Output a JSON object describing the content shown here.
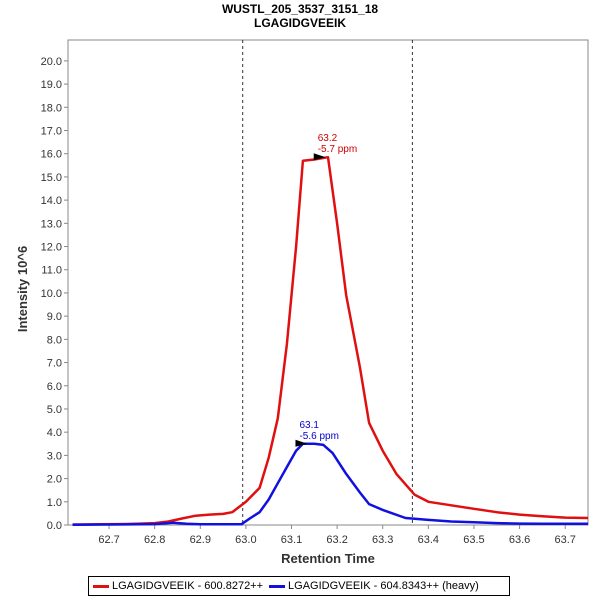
{
  "chart_data": {
    "type": "line",
    "title": "WUSTL_205_3537_3151_18",
    "subtitle": "LGAGIDGVEEIK",
    "xlabel": "Retention Time",
    "ylabel": "Intensity 10^6",
    "xlim": [
      62.61,
      63.75
    ],
    "ylim": [
      0,
      20.9
    ],
    "xticks": [
      62.7,
      62.8,
      62.9,
      63.0,
      63.1,
      63.2,
      63.3,
      63.4,
      63.5,
      63.6,
      63.7
    ],
    "xtick_labels": [
      "62.7",
      "62.8",
      "62.9",
      "63.0",
      "63.1",
      "63.2",
      "63.3",
      "63.4",
      "63.5",
      "63.6",
      "63.7"
    ],
    "yticks": [
      0,
      1,
      2,
      3,
      4,
      5,
      6,
      7,
      8,
      9,
      10,
      11,
      12,
      13,
      14,
      15,
      16,
      17,
      18,
      19,
      20
    ],
    "ytick_labels": [
      "0.0",
      "1.0",
      "2.0",
      "3.0",
      "4.0",
      "5.0",
      "6.0",
      "7.0",
      "8.0",
      "9.0",
      "10.0",
      "11.0",
      "12.0",
      "13.0",
      "14.0",
      "15.0",
      "16.0",
      "17.0",
      "18.0",
      "19.0",
      "20.0"
    ],
    "vlines": [
      62.993,
      63.365
    ],
    "grid": false,
    "legend_position": "bottom",
    "series": [
      {
        "name": "LGAGIDGVEEIK - 600.8272++",
        "color": "#e01010",
        "x": [
          62.62,
          62.64,
          62.68,
          62.72,
          62.76,
          62.8,
          62.83,
          62.86,
          62.89,
          62.92,
          62.95,
          62.97,
          63.0,
          63.03,
          63.05,
          63.07,
          63.09,
          63.11,
          63.125,
          63.15,
          63.18,
          63.2,
          63.22,
          63.25,
          63.27,
          63.3,
          63.33,
          63.37,
          63.4,
          63.45,
          63.5,
          63.55,
          63.6,
          63.65,
          63.7,
          63.75
        ],
        "y": [
          0.02,
          0.02,
          0.03,
          0.04,
          0.05,
          0.08,
          0.15,
          0.28,
          0.4,
          0.45,
          0.48,
          0.55,
          1.0,
          1.6,
          2.9,
          4.6,
          7.8,
          12.0,
          15.7,
          15.75,
          15.85,
          13.0,
          9.9,
          6.8,
          4.4,
          3.2,
          2.2,
          1.3,
          1.0,
          0.85,
          0.7,
          0.55,
          0.45,
          0.38,
          0.32,
          0.3
        ]
      },
      {
        "name": "LGAGIDGVEEIK - 604.8343++ (heavy)",
        "color": "#1010e0",
        "x": [
          62.62,
          62.7,
          62.8,
          62.84,
          62.87,
          62.9,
          62.95,
          62.99,
          63.01,
          63.03,
          63.05,
          63.07,
          63.09,
          63.11,
          63.125,
          63.15,
          63.17,
          63.19,
          63.22,
          63.25,
          63.27,
          63.3,
          63.35,
          63.4,
          63.45,
          63.5,
          63.55,
          63.6,
          63.65,
          63.7,
          63.75
        ],
        "y": [
          0.01,
          0.02,
          0.04,
          0.1,
          0.05,
          0.03,
          0.03,
          0.03,
          0.3,
          0.55,
          1.1,
          1.8,
          2.5,
          3.2,
          3.5,
          3.5,
          3.45,
          3.1,
          2.2,
          1.4,
          0.9,
          0.65,
          0.3,
          0.22,
          0.15,
          0.12,
          0.08,
          0.06,
          0.05,
          0.05,
          0.05
        ]
      }
    ],
    "annotations": [
      {
        "series": 0,
        "x": 63.175,
        "y": 15.85,
        "rt": "63.2",
        "ppm": "-5.7 ppm",
        "color": "#cc0000"
      },
      {
        "series": 1,
        "x": 63.135,
        "y": 3.5,
        "rt": "63.1",
        "ppm": "-5.6 ppm",
        "color": "#0000cc"
      }
    ]
  }
}
